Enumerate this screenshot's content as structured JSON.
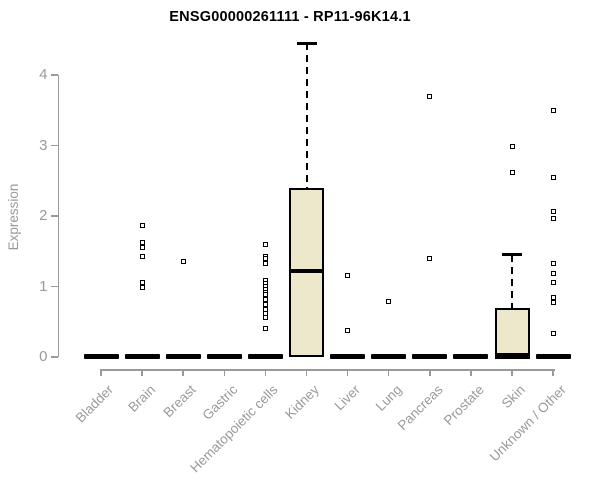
{
  "chart_data": {
    "type": "boxplot",
    "title": "ENSG00000261111 - RP11-96K14.1",
    "ylabel": "Expression",
    "xlabel": "",
    "ylim": [
      0,
      4.5
    ],
    "y_ticks": [
      0,
      1,
      2,
      3,
      4
    ],
    "grid": false,
    "legend": false,
    "box_fill_color": "#EDE8CC",
    "box_border_color": "#000000",
    "axis_color": "#9a9a9a",
    "categories": [
      "Bladder",
      "Brain",
      "Breast",
      "Gastric",
      "Hematopoietic cells",
      "Kidney",
      "Liver",
      "Lung",
      "Pancreas",
      "Prostate",
      "Skin",
      "Unknown / Other"
    ],
    "series": [
      {
        "category": "Bladder",
        "q1": 0,
        "median": 0,
        "q3": 0,
        "whisker_low": 0,
        "whisker_high": 0,
        "outliers": []
      },
      {
        "category": "Brain",
        "q1": 0,
        "median": 0,
        "q3": 0,
        "whisker_low": 0,
        "whisker_high": 0,
        "outliers": [
          1.86,
          1.63,
          1.56,
          1.42,
          1.06,
          0.99
        ]
      },
      {
        "category": "Breast",
        "q1": 0,
        "median": 0,
        "q3": 0,
        "whisker_low": 0,
        "whisker_high": 0,
        "outliers": [
          1.35
        ]
      },
      {
        "category": "Gastric",
        "q1": 0,
        "median": 0,
        "q3": 0,
        "whisker_low": 0,
        "whisker_high": 0,
        "outliers": []
      },
      {
        "category": "Hematopoietic cells",
        "q1": 0,
        "median": 0,
        "q3": 0,
        "whisker_low": 0,
        "whisker_high": 0,
        "outliers": [
          1.6,
          1.42,
          1.4,
          1.32,
          1.08,
          1.04,
          1.0,
          0.96,
          0.92,
          0.88,
          0.81,
          0.74,
          0.68,
          0.62,
          0.56,
          0.41
        ]
      },
      {
        "category": "Kidney",
        "q1": 0,
        "median": 1.22,
        "q3": 2.4,
        "whisker_low": 0,
        "whisker_high": 4.45,
        "outliers": []
      },
      {
        "category": "Liver",
        "q1": 0,
        "median": 0,
        "q3": 0,
        "whisker_low": 0,
        "whisker_high": 0,
        "outliers": [
          1.16,
          0.37
        ]
      },
      {
        "category": "Lung",
        "q1": 0,
        "median": 0,
        "q3": 0,
        "whisker_low": 0,
        "whisker_high": 0,
        "outliers": [
          0.79
        ]
      },
      {
        "category": "Pancreas",
        "q1": 0,
        "median": 0,
        "q3": 0,
        "whisker_low": 0,
        "whisker_high": 0,
        "outliers": [
          3.69,
          1.4
        ]
      },
      {
        "category": "Prostate",
        "q1": 0,
        "median": 0,
        "q3": 0,
        "whisker_low": 0,
        "whisker_high": 0,
        "outliers": []
      },
      {
        "category": "Skin",
        "q1": 0,
        "median": 0,
        "q3": 0.7,
        "whisker_low": 0,
        "whisker_high": 1.45,
        "outliers": [
          2.98,
          2.61
        ]
      },
      {
        "category": "Unknown / Other",
        "q1": 0,
        "median": 0,
        "q3": 0,
        "whisker_low": 0,
        "whisker_high": 0,
        "outliers": [
          3.49,
          2.54,
          2.06,
          1.97,
          1.33,
          1.19,
          1.05,
          0.85,
          0.78,
          0.34
        ]
      }
    ]
  }
}
